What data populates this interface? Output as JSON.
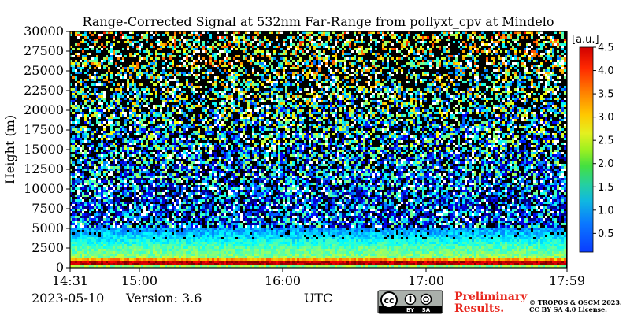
{
  "chart_data": {
    "type": "heatmap",
    "title": "Range-Corrected Signal at 532nm Far-Range from pollyxt_cpv at Mindelo",
    "ylabel": "Height (m)",
    "xlabel": "UTC",
    "x_range": [
      "14:31",
      "17:59"
    ],
    "x_ticks": [
      "14:31",
      "15:00",
      "16:00",
      "17:00",
      "17:59"
    ],
    "ylim": [
      0,
      30000
    ],
    "y_ticks": [
      0,
      2500,
      5000,
      7500,
      10000,
      12500,
      15000,
      17500,
      20000,
      22500,
      25000,
      27500,
      30000
    ],
    "colorbar": {
      "unit": "[a.u.]",
      "range": [
        0.1,
        4.5
      ],
      "ticks": [
        0.5,
        1.0,
        1.5,
        2.0,
        2.5,
        3.0,
        3.5,
        4.0,
        4.5
      ],
      "colormap": "jet"
    },
    "profile": [
      {
        "height": 0,
        "value": 1.2
      },
      {
        "height": 400,
        "value": 4.3
      },
      {
        "height": 900,
        "value": 4.2
      },
      {
        "height": 1200,
        "value": 2.4
      },
      {
        "height": 2500,
        "value": 2.1
      },
      {
        "height": 4000,
        "value": 1.6
      },
      {
        "height": 5500,
        "value": 1.1
      },
      {
        "height": 8000,
        "value": 0.9
      },
      {
        "height": 12000,
        "value": 1.3
      },
      {
        "height": 20000,
        "value": 1.9
      },
      {
        "height": 30000,
        "value": 2.6
      }
    ],
    "noise_above_height": 5000,
    "grid": false
  },
  "footer": {
    "date": "2023-05-10",
    "version": "Version: 3.6",
    "preliminary": [
      "Preliminary",
      "Results."
    ],
    "license": [
      "© TROPOS & OSCM 2023.",
      "CC BY SA 4.0 License."
    ],
    "cc_badge": {
      "main": "cc",
      "by": "BY",
      "sa": "SA"
    }
  }
}
